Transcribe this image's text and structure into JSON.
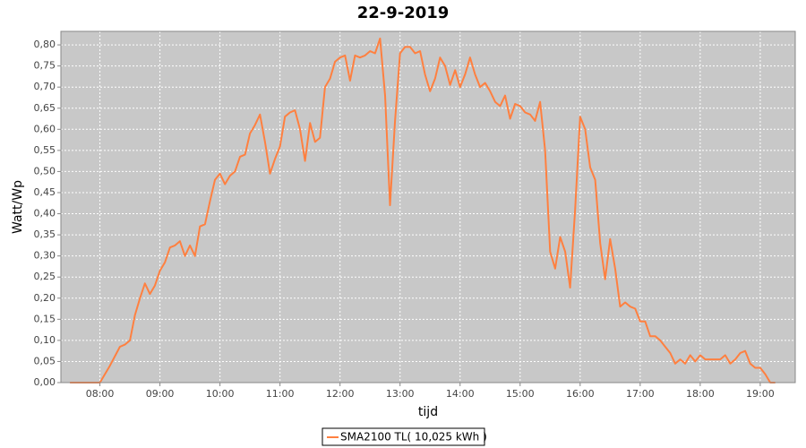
{
  "chart_data": {
    "type": "line",
    "title": "22-9-2019",
    "x_label": "tijd",
    "y_label": "Watt/Wp",
    "grid": true,
    "legend": "bottom",
    "xlim": [
      "07:21",
      "19:35"
    ],
    "xticks": [
      "08:00",
      "09:00",
      "10:00",
      "11:00",
      "12:00",
      "13:00",
      "14:00",
      "15:00",
      "16:00",
      "17:00",
      "18:00",
      "19:00"
    ],
    "ylim": [
      0,
      0.832
    ],
    "yticks": [
      {
        "value": 0,
        "label": "0,00"
      },
      {
        "value": 0.05,
        "label": "0,05"
      },
      {
        "value": 0.1,
        "label": "0,10"
      },
      {
        "value": 0.15,
        "label": "0,15"
      },
      {
        "value": 0.2,
        "label": "0,20"
      },
      {
        "value": 0.25,
        "label": "0,25"
      },
      {
        "value": 0.3,
        "label": "0,30"
      },
      {
        "value": 0.35,
        "label": "0,35"
      },
      {
        "value": 0.4,
        "label": "0,40"
      },
      {
        "value": 0.45,
        "label": "0,45"
      },
      {
        "value": 0.5,
        "label": "0,50"
      },
      {
        "value": 0.55,
        "label": "0,55"
      },
      {
        "value": 0.6,
        "label": "0,60"
      },
      {
        "value": 0.65,
        "label": "0,65"
      },
      {
        "value": 0.7,
        "label": "0,70"
      },
      {
        "value": 0.75,
        "label": "0,75"
      },
      {
        "value": 0.8,
        "label": "0,80"
      }
    ],
    "x": [
      "07:30",
      "08:00",
      "08:10",
      "08:20",
      "08:25",
      "08:30",
      "08:35",
      "08:40",
      "08:45",
      "08:50",
      "08:55",
      "09:00",
      "09:05",
      "09:10",
      "09:15",
      "09:20",
      "09:25",
      "09:30",
      "09:35",
      "09:40",
      "09:45",
      "09:50",
      "09:55",
      "10:00",
      "10:05",
      "10:10",
      "10:15",
      "10:20",
      "10:25",
      "10:30",
      "10:35",
      "10:40",
      "10:45",
      "10:50",
      "10:55",
      "11:00",
      "11:05",
      "11:10",
      "11:15",
      "11:20",
      "11:25",
      "11:30",
      "11:35",
      "11:40",
      "11:45",
      "11:50",
      "11:55",
      "12:00",
      "12:05",
      "12:10",
      "12:15",
      "12:20",
      "12:25",
      "12:30",
      "12:35",
      "12:40",
      "12:45",
      "12:50",
      "12:55",
      "13:00",
      "13:05",
      "13:10",
      "13:15",
      "13:20",
      "13:25",
      "13:30",
      "13:35",
      "13:40",
      "13:45",
      "13:50",
      "13:55",
      "14:00",
      "14:05",
      "14:10",
      "14:15",
      "14:20",
      "14:25",
      "14:30",
      "14:35",
      "14:40",
      "14:45",
      "14:50",
      "14:55",
      "15:00",
      "15:05",
      "15:10",
      "15:15",
      "15:20",
      "15:25",
      "15:30",
      "15:35",
      "15:40",
      "15:45",
      "15:50",
      "15:55",
      "16:00",
      "16:05",
      "16:10",
      "16:15",
      "16:20",
      "16:25",
      "16:30",
      "16:35",
      "16:40",
      "16:45",
      "16:50",
      "16:55",
      "17:00",
      "17:05",
      "17:10",
      "17:15",
      "17:20",
      "17:25",
      "17:30",
      "17:35",
      "17:40",
      "17:45",
      "17:50",
      "17:55",
      "18:00",
      "18:05",
      "18:10",
      "18:15",
      "18:20",
      "18:25",
      "18:30",
      "18:35",
      "18:40",
      "18:45",
      "18:50",
      "18:55",
      "19:00",
      "19:05",
      "19:10",
      "19:15"
    ],
    "series": [
      {
        "name": "SMA2100 TL( 10,025 kWh )",
        "color": "#ff8040",
        "values": [
          0,
          0,
          0.04,
          0.085,
          0.09,
          0.1,
          0.16,
          0.2,
          0.235,
          0.21,
          0.23,
          0.265,
          0.285,
          0.32,
          0.325,
          0.335,
          0.3,
          0.325,
          0.3,
          0.37,
          0.375,
          0.43,
          0.48,
          0.495,
          0.47,
          0.49,
          0.5,
          0.535,
          0.54,
          0.59,
          0.61,
          0.635,
          0.57,
          0.495,
          0.53,
          0.56,
          0.63,
          0.64,
          0.645,
          0.6,
          0.525,
          0.615,
          0.57,
          0.58,
          0.7,
          0.72,
          0.76,
          0.77,
          0.775,
          0.715,
          0.775,
          0.77,
          0.775,
          0.785,
          0.78,
          0.815,
          0.68,
          0.42,
          0.62,
          0.78,
          0.795,
          0.795,
          0.78,
          0.785,
          0.73,
          0.69,
          0.72,
          0.77,
          0.75,
          0.705,
          0.74,
          0.7,
          0.73,
          0.77,
          0.73,
          0.7,
          0.71,
          0.69,
          0.665,
          0.655,
          0.68,
          0.625,
          0.66,
          0.655,
          0.64,
          0.635,
          0.62,
          0.665,
          0.55,
          0.31,
          0.27,
          0.345,
          0.31,
          0.225,
          0.41,
          0.63,
          0.6,
          0.51,
          0.48,
          0.33,
          0.245,
          0.34,
          0.27,
          0.18,
          0.19,
          0.18,
          0.175,
          0.145,
          0.145,
          0.11,
          0.11,
          0.1,
          0.085,
          0.07,
          0.045,
          0.055,
          0.045,
          0.065,
          0.05,
          0.065,
          0.055,
          0.055,
          0.055,
          0.055,
          0.065,
          0.045,
          0.055,
          0.07,
          0.075,
          0.045,
          0.035,
          0.035,
          0.02,
          0,
          0
        ]
      }
    ]
  }
}
